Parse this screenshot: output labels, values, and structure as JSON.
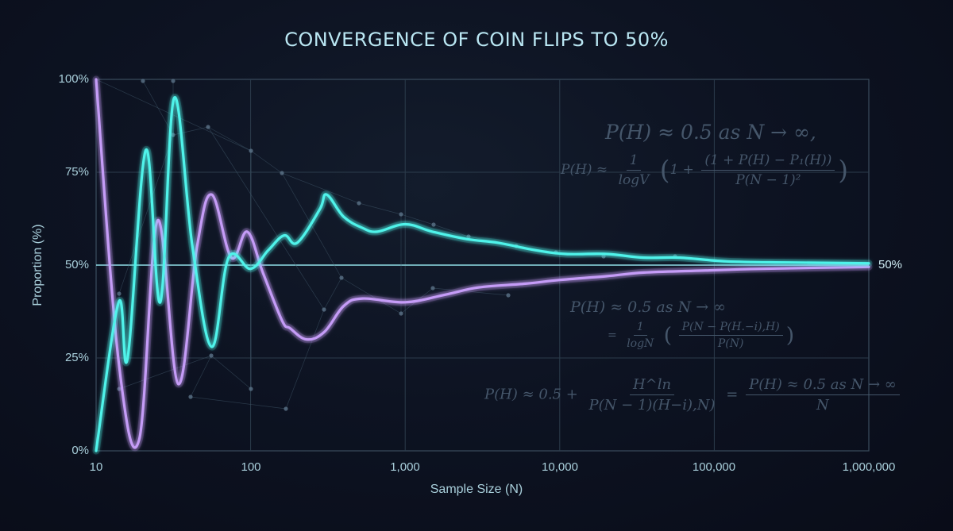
{
  "chart_data": {
    "type": "line",
    "title": "CONVERGENCE OF COIN FLIPS TO 50%",
    "xlabel": "Sample Size (N)",
    "ylabel": "Proportion (%)",
    "x_scale": "log",
    "xlim": [
      10,
      1000000
    ],
    "ylim": [
      0,
      100
    ],
    "x_ticks": [
      "10",
      "100",
      "1,000",
      "10,000",
      "100,000",
      "1,000,000"
    ],
    "y_ticks": [
      "0%",
      "25%",
      "50%",
      "75%",
      "100%"
    ],
    "grid": true,
    "legend": null,
    "reference_line": {
      "y": 50,
      "label": "50%"
    },
    "series": [
      {
        "name": "cyan-series",
        "color": "#4ff3ea",
        "points": [
          [
            10,
            0
          ],
          [
            14,
            40
          ],
          [
            16,
            25
          ],
          [
            21,
            81
          ],
          [
            26,
            40
          ],
          [
            32,
            95
          ],
          [
            42,
            55
          ],
          [
            56,
            28
          ],
          [
            72,
            52
          ],
          [
            100,
            49
          ],
          [
            130,
            54
          ],
          [
            165,
            58
          ],
          [
            200,
            56
          ],
          [
            280,
            65
          ],
          [
            310,
            69
          ],
          [
            400,
            63
          ],
          [
            530,
            60
          ],
          [
            660,
            59
          ],
          [
            1000,
            61
          ],
          [
            1500,
            59
          ],
          [
            2500,
            57
          ],
          [
            4000,
            56
          ],
          [
            7000,
            54
          ],
          [
            11000,
            53
          ],
          [
            20000,
            53
          ],
          [
            35000,
            52
          ],
          [
            60000,
            52
          ],
          [
            120000,
            51
          ],
          [
            300000,
            50.7
          ],
          [
            1000000,
            50.5
          ]
        ]
      },
      {
        "name": "purple-series",
        "color": "#c59cf7",
        "points": [
          [
            10,
            100
          ],
          [
            14,
            24
          ],
          [
            19,
            3
          ],
          [
            25,
            62
          ],
          [
            34,
            18
          ],
          [
            45,
            55
          ],
          [
            56,
            69
          ],
          [
            75,
            52
          ],
          [
            95,
            59
          ],
          [
            120,
            48
          ],
          [
            160,
            35
          ],
          [
            180,
            33
          ],
          [
            230,
            30
          ],
          [
            300,
            32
          ],
          [
            400,
            39
          ],
          [
            530,
            41
          ],
          [
            1000,
            40
          ],
          [
            1800,
            42
          ],
          [
            3000,
            44
          ],
          [
            6000,
            45
          ],
          [
            10000,
            46
          ],
          [
            20000,
            47
          ],
          [
            35000,
            48
          ],
          [
            80000,
            48.5
          ],
          [
            200000,
            49
          ],
          [
            1000000,
            49.5
          ]
        ]
      }
    ],
    "annotations": [
      "P(H) ≈ 0.5 as N → ∞,",
      "P(H) ≈ 1/logV (1 + (1 + P(H) − P₁(H)) / P(N−1)²)",
      "P(H) ≈ 0.5 as N → ∞",
      "= 1/logN (P(N − P(H.−i),H) / P(N))",
      "P(H) ≈ 0.5 + H^ln / P(N−1)(H−i),N) = P(H) ≈ 0.5 as N → ∞ / N"
    ]
  },
  "labels": {
    "title": "CONVERGENCE OF COIN FLIPS TO 50%",
    "xlabel": "Sample Size (N)",
    "ylabel": "Proportion (%)",
    "ref_label": "50%",
    "y_ticks": [
      "100%",
      "75%",
      "50%",
      "25%",
      "0%"
    ],
    "x_ticks": [
      "10",
      "100",
      "1,000",
      "10,000",
      "100,000",
      "1,000,000"
    ]
  },
  "formulas": {
    "f1": {
      "text": "P(H) ≈ 0.5 as N → ∞,"
    },
    "f2": {
      "lhs": "P(H) ≈",
      "num1": "1",
      "den1": "logV",
      "one_plus": "1 +",
      "num2": "(1 + P(H) − P₁(H))",
      "den2": "P(N − 1)²"
    },
    "f3": {
      "text": "P(H) ≈ 0.5 as N → ∞"
    },
    "f4": {
      "eq": "=",
      "num1": "1",
      "den1": "logN",
      "num2": "P(N − P(H.−i),H)",
      "den2": "P(N)"
    },
    "f5": {
      "lhs": "P(H) ≈ 0.5 +",
      "num1": "H^ln",
      "den1": "P(N − 1)(H−i),N)",
      "eq": "=",
      "num2": "P(H) ≈ 0.5 as N → ∞",
      "den2": "N"
    }
  }
}
